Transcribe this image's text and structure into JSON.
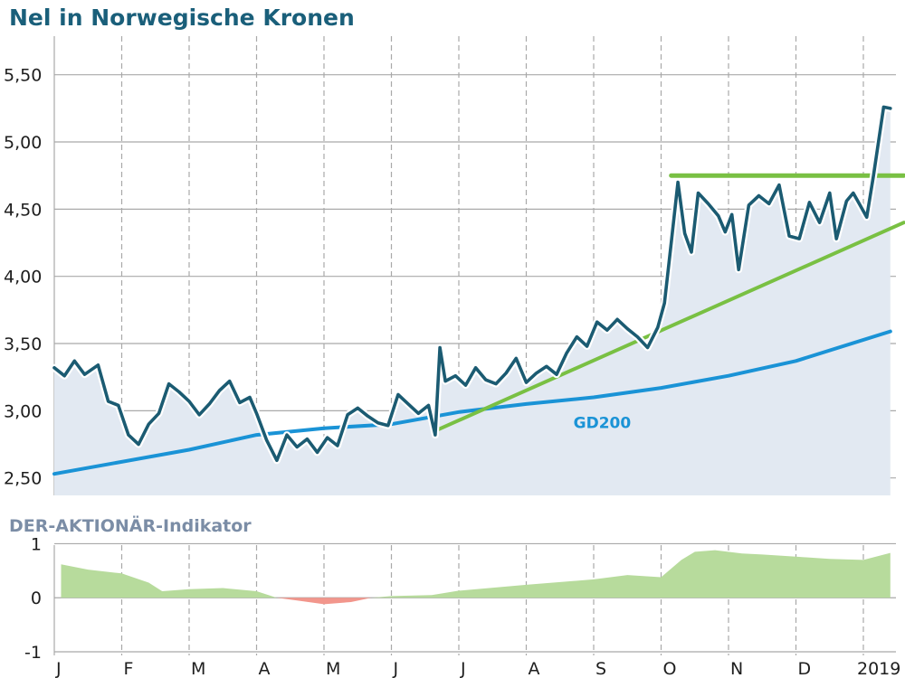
{
  "colors": {
    "title": "#1a5f7a",
    "subtitle": "#7b8da6",
    "price_line": "#1b5b72",
    "price_fill": "#e2e9f2",
    "gd200": "#1a93d6",
    "trend": "#79c043",
    "indicator_pos": "#b7db9c",
    "indicator_neg": "#f2968c",
    "grid": "#a9a9a9",
    "text": "#1e1e1e"
  },
  "chart_data": [
    {
      "type": "line",
      "title": "Nel in Norwegische Kronen",
      "ylim": [
        2.37,
        5.72
      ],
      "yticks": [
        2.5,
        3.0,
        3.5,
        4.0,
        4.5,
        5.0,
        5.5
      ],
      "ytick_labels": [
        "2,50",
        "3,00",
        "3,50",
        "4,00",
        "4,50",
        "5,00",
        "5,50"
      ],
      "grid": true,
      "series": [
        {
          "name": "Nel",
          "values": [
            [
              0.0,
              3.32
            ],
            [
              0.15,
              3.26
            ],
            [
              0.3,
              3.37
            ],
            [
              0.45,
              3.27
            ],
            [
              0.65,
              3.34
            ],
            [
              0.8,
              3.07
            ],
            [
              0.95,
              3.04
            ],
            [
              1.1,
              2.82
            ],
            [
              1.25,
              2.75
            ],
            [
              1.4,
              2.9
            ],
            [
              1.55,
              2.98
            ],
            [
              1.7,
              3.2
            ],
            [
              1.85,
              3.14
            ],
            [
              2.0,
              3.07
            ],
            [
              2.15,
              2.97
            ],
            [
              2.3,
              3.05
            ],
            [
              2.45,
              3.15
            ],
            [
              2.6,
              3.22
            ],
            [
              2.75,
              3.06
            ],
            [
              2.9,
              3.1
            ],
            [
              3.0,
              2.98
            ],
            [
              3.15,
              2.78
            ],
            [
              3.3,
              2.63
            ],
            [
              3.45,
              2.82
            ],
            [
              3.6,
              2.73
            ],
            [
              3.75,
              2.79
            ],
            [
              3.9,
              2.69
            ],
            [
              4.05,
              2.8
            ],
            [
              4.2,
              2.74
            ],
            [
              4.35,
              2.97
            ],
            [
              4.5,
              3.02
            ],
            [
              4.65,
              2.96
            ],
            [
              4.8,
              2.91
            ],
            [
              4.95,
              2.89
            ],
            [
              5.1,
              3.12
            ],
            [
              5.25,
              3.05
            ],
            [
              5.4,
              2.98
            ],
            [
              5.55,
              3.04
            ],
            [
              5.65,
              2.82
            ],
            [
              5.72,
              3.47
            ],
            [
              5.8,
              3.22
            ],
            [
              5.95,
              3.26
            ],
            [
              6.1,
              3.19
            ],
            [
              6.25,
              3.32
            ],
            [
              6.4,
              3.23
            ],
            [
              6.55,
              3.2
            ],
            [
              6.7,
              3.28
            ],
            [
              6.85,
              3.39
            ],
            [
              7.0,
              3.21
            ],
            [
              7.15,
              3.28
            ],
            [
              7.3,
              3.33
            ],
            [
              7.45,
              3.27
            ],
            [
              7.6,
              3.43
            ],
            [
              7.75,
              3.55
            ],
            [
              7.9,
              3.48
            ],
            [
              8.05,
              3.66
            ],
            [
              8.2,
              3.6
            ],
            [
              8.35,
              3.68
            ],
            [
              8.5,
              3.61
            ],
            [
              8.65,
              3.55
            ],
            [
              8.8,
              3.47
            ],
            [
              8.95,
              3.62
            ],
            [
              9.05,
              3.8
            ],
            [
              9.15,
              4.25
            ],
            [
              9.25,
              4.7
            ],
            [
              9.35,
              4.32
            ],
            [
              9.45,
              4.18
            ],
            [
              9.55,
              4.62
            ],
            [
              9.7,
              4.54
            ],
            [
              9.85,
              4.45
            ],
            [
              9.95,
              4.33
            ],
            [
              10.05,
              4.46
            ],
            [
              10.15,
              4.05
            ],
            [
              10.3,
              4.53
            ],
            [
              10.45,
              4.6
            ],
            [
              10.6,
              4.54
            ],
            [
              10.75,
              4.68
            ],
            [
              10.9,
              4.3
            ],
            [
              11.05,
              4.28
            ],
            [
              11.2,
              4.55
            ],
            [
              11.35,
              4.4
            ],
            [
              11.5,
              4.62
            ],
            [
              11.6,
              4.28
            ],
            [
              11.75,
              4.56
            ],
            [
              11.85,
              4.62
            ],
            [
              11.95,
              4.53
            ],
            [
              12.05,
              4.44
            ],
            [
              12.15,
              4.75
            ],
            [
              12.3,
              5.26
            ],
            [
              12.4,
              5.25
            ]
          ]
        },
        {
          "name": "GD200",
          "values": [
            [
              0.0,
              2.53
            ],
            [
              2.0,
              2.71
            ],
            [
              3.0,
              2.82
            ],
            [
              4.0,
              2.87
            ],
            [
              5.0,
              2.9
            ],
            [
              6.0,
              2.99
            ],
            [
              7.0,
              3.05
            ],
            [
              8.0,
              3.1
            ],
            [
              9.0,
              3.17
            ],
            [
              10.0,
              3.26
            ],
            [
              11.0,
              3.37
            ],
            [
              12.4,
              3.59
            ]
          ]
        },
        {
          "name": "",
          "values": [
            [
              5.65,
              2.85
            ],
            [
              12.6,
              4.4
            ]
          ]
        },
        {
          "name": "",
          "values": [
            [
              9.15,
              4.75
            ],
            [
              12.6,
              4.75
            ]
          ]
        }
      ],
      "annotations": [
        {
          "text": "GD200",
          "x": 7.7,
          "y": 2.87
        }
      ]
    },
    {
      "type": "area",
      "title": "DER-AKTIONÄR-Indikator",
      "ylim": [
        -1,
        1
      ],
      "yticks": [
        -1,
        0,
        1
      ],
      "ytick_labels": [
        "-1",
        "0",
        "1"
      ],
      "grid": true,
      "series": [
        {
          "name": "DER-AKTIONÄR-Indikator",
          "values": [
            [
              0.1,
              0.62
            ],
            [
              0.5,
              0.52
            ],
            [
              1.0,
              0.45
            ],
            [
              1.4,
              0.28
            ],
            [
              1.6,
              0.12
            ],
            [
              2.0,
              0.16
            ],
            [
              2.5,
              0.18
            ],
            [
              3.0,
              0.12
            ],
            [
              3.3,
              0.0
            ],
            [
              3.6,
              -0.05
            ],
            [
              4.0,
              -0.12
            ],
            [
              4.4,
              -0.08
            ],
            [
              4.7,
              0.0
            ],
            [
              5.0,
              0.03
            ],
            [
              5.6,
              0.05
            ],
            [
              6.0,
              0.13
            ],
            [
              7.0,
              0.24
            ],
            [
              8.0,
              0.34
            ],
            [
              8.5,
              0.42
            ],
            [
              9.0,
              0.38
            ],
            [
              9.3,
              0.7
            ],
            [
              9.5,
              0.85
            ],
            [
              9.8,
              0.88
            ],
            [
              10.2,
              0.82
            ],
            [
              10.5,
              0.8
            ],
            [
              11.0,
              0.76
            ],
            [
              11.5,
              0.72
            ],
            [
              12.0,
              0.7
            ],
            [
              12.4,
              0.83
            ]
          ]
        }
      ]
    }
  ],
  "x_axis": {
    "months": [
      "J",
      "F",
      "M",
      "A",
      "M",
      "J",
      "J",
      "A",
      "S",
      "O",
      "N",
      "D"
    ],
    "year_label": "2019"
  }
}
